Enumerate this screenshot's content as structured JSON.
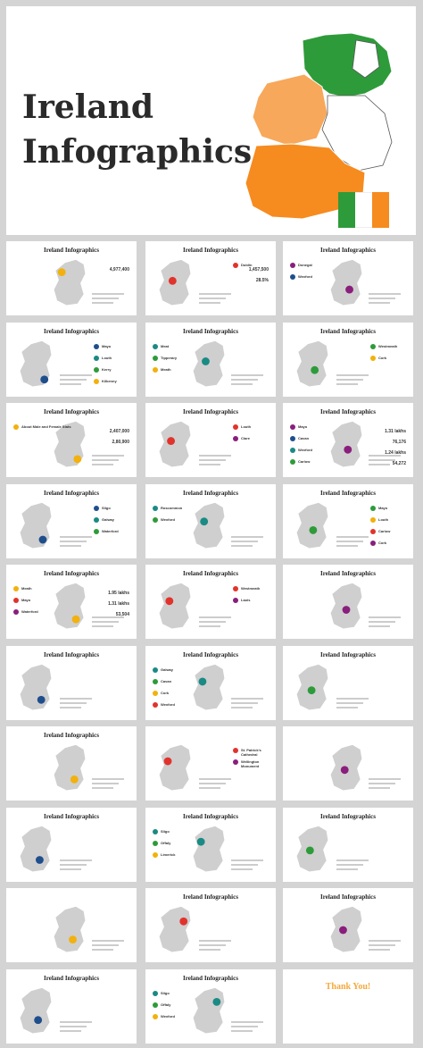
{
  "hero": {
    "title_line1": "Ireland",
    "title_line2": "Infographics"
  },
  "colors": {
    "green": "#2e9b3a",
    "orange": "#f68b1f",
    "light_orange": "#f7a85a",
    "white": "#ffffff",
    "grey_map": "#cfcfcf",
    "accent_yellow": "#f2b10c",
    "accent_red": "#e1332c",
    "accent_purple": "#8a1e7c",
    "accent_blue": "#1f4e8c",
    "accent_teal": "#1a8a84"
  },
  "slides": [
    {
      "title": "Ireland Infographics",
      "values": [
        "4,977,400"
      ]
    },
    {
      "title": "Ireland Infographics",
      "labels": [
        "Dublin"
      ],
      "values": [
        "1,457,500",
        "28.5%"
      ]
    },
    {
      "title": "Ireland Infographics",
      "labels": [
        "Donegal",
        "Wexford"
      ]
    },
    {
      "title": "Ireland Infographics",
      "labels": [
        "Mayo",
        "Louth",
        "Kerry",
        "Kilkenny"
      ]
    },
    {
      "title": "Ireland Infographics",
      "labels": [
        "Meat",
        "Tipperary",
        "Meath"
      ]
    },
    {
      "title": "Ireland Infographics",
      "labels": [
        "Westmeath",
        "Cork"
      ]
    },
    {
      "title": "Ireland Infographics",
      "labels": [
        "About Male and Female Stats"
      ],
      "values": [
        "2,407,000",
        "2,80,900"
      ]
    },
    {
      "title": "Ireland Infographics",
      "labels": [
        "Louth",
        "Clare"
      ]
    },
    {
      "title": "Ireland Infographics",
      "labels": [
        "Mayo",
        "Cavan",
        "Wexford",
        "Carlow"
      ],
      "values": [
        "1.31 lakhs",
        "76,176",
        "1.24 lakhs",
        "54,272"
      ]
    },
    {
      "title": "Ireland Infographics",
      "labels": [
        "Sligo",
        "Galway",
        "Waterford"
      ]
    },
    {
      "title": "Ireland Infographics",
      "labels": [
        "Roscommon",
        "Wexford"
      ]
    },
    {
      "title": "Ireland Infographics",
      "labels": [
        "Mayo",
        "Louth",
        "Carlow",
        "Cork"
      ]
    },
    {
      "title": "Ireland Infographics",
      "labels": [
        "Meath",
        "Mayo",
        "Waterford"
      ],
      "values": [
        "1.95 lakhs",
        "1.31 lakhs",
        "53,504"
      ]
    },
    {
      "title": "Ireland Infographics",
      "labels": [
        "Westmeath",
        "Laois"
      ]
    },
    {
      "title": "Ireland Infographics",
      "labels": []
    },
    {
      "title": "Ireland Infographics",
      "labels": []
    },
    {
      "title": "Ireland Infographics",
      "labels": [
        "Galway",
        "Cavan",
        "Cork",
        "Wexford"
      ]
    },
    {
      "title": "Ireland Infographics",
      "labels": []
    },
    {
      "title": "Ireland Infographics",
      "labels": []
    },
    {
      "title": "",
      "labels": [
        "St. Patrick's Cathedral",
        "Wellington Monument"
      ]
    },
    {
      "title": "",
      "labels": []
    },
    {
      "title": "Ireland Infographics",
      "labels": []
    },
    {
      "title": "Ireland Infographics",
      "labels": [
        "Sligo",
        "Offaly",
        "Limerick"
      ]
    },
    {
      "title": "Ireland Infographics",
      "labels": []
    },
    {
      "title": "",
      "labels": []
    },
    {
      "title": "Ireland Infographics",
      "labels": []
    },
    {
      "title": "Ireland Infographics",
      "labels": []
    },
    {
      "title": "Ireland Infographics",
      "labels": []
    },
    {
      "title": "Ireland Infographics",
      "labels": [
        "Sligo",
        "Offaly",
        "Wexford"
      ]
    },
    {
      "title": "",
      "labels": [
        "Thank You!"
      ]
    }
  ],
  "slide_titles_big": {
    "slide20": "Ireland\nInfographics",
    "thanks": "Thank You!"
  }
}
